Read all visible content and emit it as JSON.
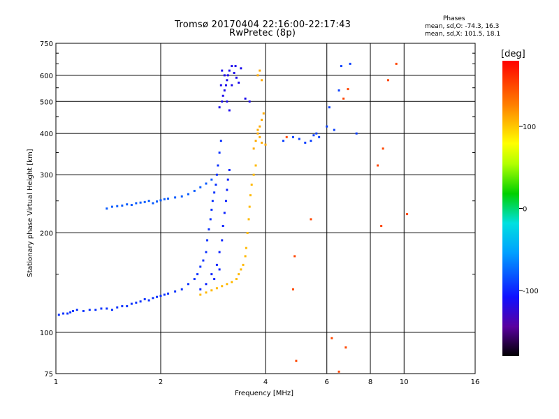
{
  "title": {
    "line1": "Tromsø 20170404 22:16:00-22:17:43",
    "line2": "RwPretec (8p)"
  },
  "stats": {
    "heading": "Phases",
    "o_line": "mean, sd,O: -74.3, 16.3",
    "x_line": "mean, sd,X: 101.5, 18.1"
  },
  "chart_data": {
    "type": "scatter",
    "xlabel": "Frequency [MHz]",
    "ylabel": "Stationary phase Virtual Height [km]",
    "x_scale": "log2",
    "y_scale": "log",
    "xlim": [
      1,
      16
    ],
    "ylim": [
      75,
      750
    ],
    "x_ticks": [
      1,
      2,
      4,
      6,
      8,
      10,
      16
    ],
    "x_tick_labels": [
      "1",
      "2",
      "4",
      "6",
      "8",
      "10",
      "16"
    ],
    "y_ticks": [
      75,
      100,
      200,
      300,
      400,
      500,
      600,
      750
    ],
    "y_tick_labels": [
      "75",
      "100",
      "200",
      "300",
      "400",
      "500",
      "600",
      "750"
    ],
    "grid": true,
    "color_scale": {
      "label": "[deg]",
      "range": [
        -180,
        180
      ],
      "ticks": [
        -100,
        0,
        100
      ],
      "tick_labels": [
        "-100",
        "0",
        "100"
      ]
    },
    "series": [
      {
        "trace": "low-frequency trace",
        "phase": -95,
        "points": [
          [
            1.02,
            113
          ],
          [
            1.05,
            114
          ],
          [
            1.08,
            114
          ],
          [
            1.1,
            115
          ],
          [
            1.12,
            116
          ],
          [
            1.15,
            117
          ],
          [
            1.2,
            116
          ],
          [
            1.25,
            117
          ],
          [
            1.3,
            117
          ],
          [
            1.35,
            118
          ],
          [
            1.4,
            118
          ],
          [
            1.45,
            117
          ],
          [
            1.5,
            119
          ],
          [
            1.55,
            120
          ],
          [
            1.6,
            120
          ],
          [
            1.65,
            122
          ],
          [
            1.7,
            123
          ],
          [
            1.75,
            124
          ],
          [
            1.8,
            126
          ],
          [
            1.85,
            125
          ],
          [
            1.9,
            127
          ],
          [
            1.95,
            128
          ],
          [
            2.0,
            129
          ],
          [
            2.05,
            130
          ],
          [
            2.1,
            131
          ],
          [
            2.2,
            133
          ],
          [
            2.3,
            135
          ],
          [
            2.4,
            140
          ],
          [
            2.5,
            145
          ],
          [
            2.55,
            150
          ],
          [
            2.6,
            158
          ],
          [
            2.65,
            165
          ],
          [
            2.7,
            175
          ],
          [
            2.72,
            190
          ],
          [
            2.75,
            205
          ],
          [
            2.78,
            220
          ],
          [
            2.8,
            235
          ],
          [
            2.82,
            250
          ],
          [
            2.85,
            265
          ],
          [
            2.88,
            280
          ],
          [
            2.9,
            300
          ],
          [
            2.92,
            320
          ],
          [
            2.95,
            350
          ],
          [
            2.98,
            380
          ]
        ]
      },
      {
        "trace": "spread branch",
        "phase": -100,
        "points": [
          [
            2.6,
            135
          ],
          [
            2.7,
            140
          ],
          [
            2.8,
            150
          ],
          [
            2.9,
            160
          ],
          [
            2.95,
            175
          ],
          [
            3.0,
            190
          ],
          [
            3.02,
            210
          ],
          [
            3.05,
            230
          ],
          [
            3.08,
            250
          ],
          [
            3.1,
            270
          ],
          [
            3.12,
            290
          ],
          [
            3.15,
            310
          ],
          [
            2.85,
            145
          ],
          [
            2.95,
            155
          ]
        ]
      },
      {
        "trace": "horizontal band",
        "phase": -80,
        "points": [
          [
            1.4,
            237
          ],
          [
            1.45,
            240
          ],
          [
            1.5,
            241
          ],
          [
            1.55,
            242
          ],
          [
            1.6,
            244
          ],
          [
            1.65,
            243
          ],
          [
            1.7,
            246
          ],
          [
            1.75,
            247
          ],
          [
            1.8,
            248
          ],
          [
            1.85,
            250
          ],
          [
            1.9,
            246
          ],
          [
            1.95,
            249
          ],
          [
            2.0,
            251
          ],
          [
            2.05,
            253
          ],
          [
            2.1,
            254
          ],
          [
            2.2,
            256
          ],
          [
            2.3,
            258
          ],
          [
            2.4,
            262
          ],
          [
            2.5,
            268
          ],
          [
            2.6,
            275
          ],
          [
            2.7,
            282
          ],
          [
            2.8,
            290
          ]
        ]
      },
      {
        "trace": "upper spread layer",
        "phase": -115,
        "points": [
          [
            2.95,
            480
          ],
          [
            3.0,
            500
          ],
          [
            3.02,
            520
          ],
          [
            3.05,
            540
          ],
          [
            3.08,
            560
          ],
          [
            3.1,
            580
          ],
          [
            3.12,
            600
          ],
          [
            3.15,
            620
          ],
          [
            3.2,
            640
          ],
          [
            3.25,
            610
          ],
          [
            3.3,
            590
          ],
          [
            3.35,
            570
          ],
          [
            3.0,
            620
          ],
          [
            3.05,
            600
          ],
          [
            2.98,
            560
          ],
          [
            3.1,
            500
          ],
          [
            3.15,
            470
          ],
          [
            3.2,
            560
          ],
          [
            3.28,
            640
          ],
          [
            3.4,
            630
          ],
          [
            3.5,
            510
          ],
          [
            3.6,
            500
          ]
        ]
      },
      {
        "trace": "extraordinary trace",
        "phase": 105,
        "points": [
          [
            2.6,
            130
          ],
          [
            2.7,
            132
          ],
          [
            2.8,
            134
          ],
          [
            2.9,
            136
          ],
          [
            3.0,
            138
          ],
          [
            3.1,
            140
          ],
          [
            3.2,
            142
          ],
          [
            3.3,
            145
          ],
          [
            3.35,
            150
          ],
          [
            3.4,
            155
          ],
          [
            3.45,
            160
          ],
          [
            3.5,
            170
          ],
          [
            3.52,
            180
          ],
          [
            3.55,
            200
          ],
          [
            3.58,
            220
          ],
          [
            3.6,
            240
          ],
          [
            3.62,
            260
          ],
          [
            3.65,
            280
          ],
          [
            3.7,
            300
          ],
          [
            3.75,
            320
          ]
        ]
      },
      {
        "trace": "upper extraordinary layer",
        "phase": 110,
        "points": [
          [
            3.7,
            360
          ],
          [
            3.75,
            380
          ],
          [
            3.8,
            400
          ],
          [
            3.85,
            420
          ],
          [
            3.9,
            440
          ],
          [
            3.95,
            460
          ],
          [
            3.8,
            410
          ],
          [
            3.85,
            390
          ],
          [
            3.9,
            375
          ],
          [
            4.0,
            370
          ],
          [
            3.8,
            600
          ],
          [
            3.85,
            620
          ],
          [
            3.9,
            580
          ]
        ]
      },
      {
        "trace": "scattered points",
        "phase": -90,
        "points": [
          [
            4.5,
            380
          ],
          [
            4.8,
            390
          ],
          [
            5.0,
            385
          ],
          [
            5.2,
            375
          ],
          [
            5.4,
            380
          ],
          [
            5.5,
            395
          ],
          [
            5.6,
            400
          ],
          [
            5.7,
            390
          ],
          [
            6.0,
            420
          ],
          [
            6.1,
            480
          ],
          [
            6.3,
            410
          ],
          [
            6.5,
            540
          ],
          [
            6.6,
            640
          ],
          [
            7.0,
            650
          ],
          [
            7.3,
            400
          ]
        ]
      },
      {
        "trace": "sparse other phases",
        "phase": 150,
        "points": [
          [
            6.2,
            96
          ],
          [
            6.8,
            90
          ],
          [
            4.9,
            82
          ],
          [
            6.5,
            76
          ],
          [
            6.7,
            510
          ],
          [
            6.9,
            545
          ],
          [
            8.4,
            320
          ],
          [
            8.6,
            210
          ],
          [
            8.7,
            360
          ],
          [
            9.0,
            580
          ],
          [
            9.5,
            650
          ],
          [
            10.2,
            228
          ],
          [
            5.4,
            220
          ],
          [
            4.6,
            390
          ],
          [
            4.85,
            170
          ],
          [
            4.8,
            135
          ]
        ]
      }
    ]
  }
}
